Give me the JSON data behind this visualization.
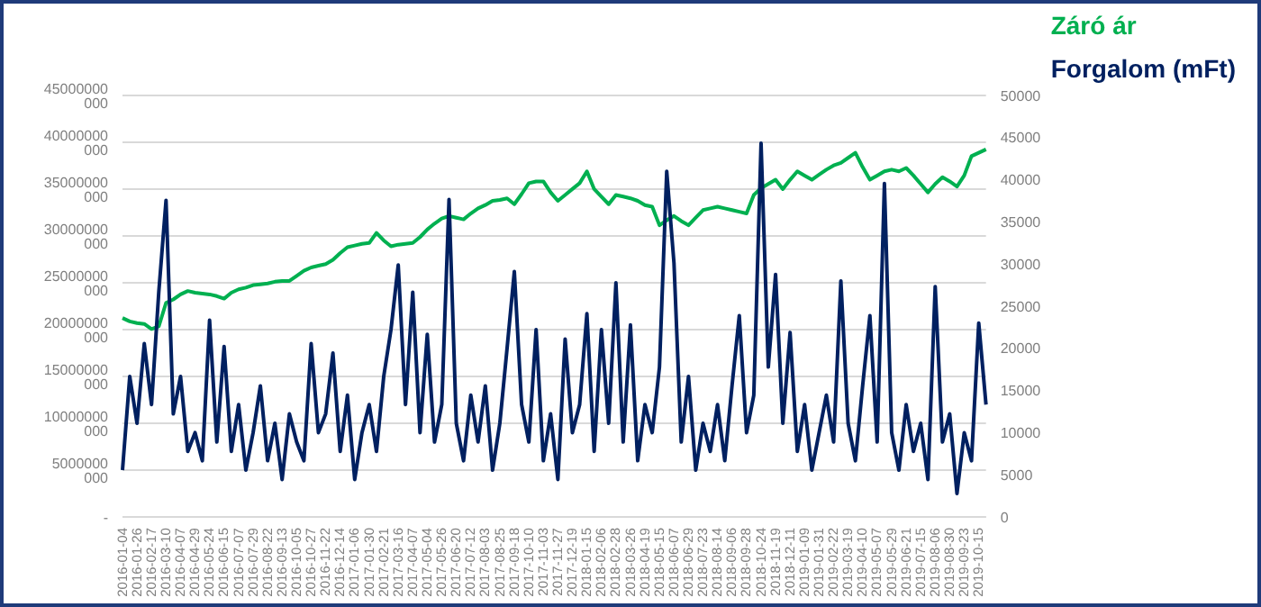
{
  "chart_data": {
    "type": "line",
    "categories": [
      "2016-01-04",
      null,
      "2016-01-26",
      null,
      "2016-02-17",
      null,
      "2016-03-10",
      null,
      "2016-04-07",
      null,
      "2016-04-29",
      null,
      "2016-05-24",
      null,
      "2016-06-15",
      null,
      "2016-07-07",
      null,
      "2016-07-29",
      null,
      "2016-08-22",
      null,
      "2016-09-13",
      null,
      "2016-10-05",
      null,
      "2016-10-27",
      null,
      "2016-11-22",
      null,
      "2016-12-14",
      null,
      "2017-01-06",
      null,
      "2017-01-30",
      null,
      "2017-02-21",
      null,
      "2017-03-16",
      null,
      "2017-04-07",
      null,
      "2017-05-04",
      null,
      "2017-05-26",
      null,
      "2017-06-20",
      null,
      "2017-07-12",
      null,
      "2017-08-03",
      null,
      "2017-08-25",
      null,
      "2017-09-18",
      null,
      "2017-10-10",
      null,
      "2017-11-03",
      null,
      "2017-11-27",
      null,
      "2017-12-19",
      null,
      "2018-01-15",
      null,
      "2018-02-06",
      null,
      "2018-02-28",
      null,
      "2018-03-26",
      null,
      "2018-04-19",
      null,
      "2018-05-15",
      null,
      "2018-06-07",
      null,
      "2018-06-29",
      null,
      "2018-07-23",
      null,
      "2018-08-14",
      null,
      "2018-09-06",
      null,
      "2018-09-28",
      null,
      "2018-10-24",
      null,
      "2018-11-19",
      null,
      "2018-12-11",
      null,
      "2019-01-09",
      null,
      "2019-01-31",
      null,
      "2019-02-22",
      null,
      "2019-03-19",
      null,
      "2019-04-10",
      null,
      "2019-05-07",
      null,
      "2019-05-29",
      null,
      "2019-06-21",
      null,
      "2019-07-15",
      null,
      "2019-08-06",
      null,
      "2019-08-30",
      null,
      "2019-09-23",
      null,
      "2019-10-15",
      null
    ],
    "series": [
      {
        "name": "Záró ár",
        "color": "#00b050",
        "axis": "y2",
        "values": [
          23600,
          23200,
          23000,
          22900,
          22300,
          22600,
          25400,
          25800,
          26400,
          26800,
          26600,
          26500,
          26400,
          26200,
          25900,
          26600,
          27000,
          27200,
          27500,
          27600,
          27700,
          27900,
          28000,
          28000,
          28600,
          29200,
          29600,
          29800,
          30000,
          30500,
          31300,
          32000,
          32200,
          32400,
          32500,
          33700,
          32800,
          32100,
          32300,
          32400,
          32500,
          33200,
          34100,
          34800,
          35400,
          35700,
          35500,
          35300,
          36000,
          36600,
          37000,
          37500,
          37600,
          37800,
          37100,
          38300,
          39600,
          39800,
          39800,
          38500,
          37500,
          38200,
          38900,
          39600,
          41000,
          38900,
          38000,
          37100,
          38200,
          38000,
          37800,
          37500,
          37000,
          36800,
          34600,
          35200,
          35700,
          35100,
          34600,
          35500,
          36400,
          36600,
          36800,
          36600,
          36400,
          36200,
          36000,
          38200,
          39000,
          39500,
          40000,
          38900,
          40000,
          41000,
          40500,
          40000,
          40600,
          41200,
          41700,
          42000,
          42600,
          43200,
          41500,
          40000,
          40500,
          41000,
          41200,
          41000,
          41400,
          40500,
          39500,
          38500,
          39500,
          40300,
          39800,
          39200,
          40500,
          42800,
          43200,
          43600
        ]
      },
      {
        "name": "Forgalom (mFt)",
        "color": "#002060",
        "values": [
          5000000000,
          15000000000,
          10000000000,
          18500000000,
          12000000000,
          24000000000,
          33800000000,
          11000000000,
          15000000000,
          7000000000,
          9000000000,
          6000000000,
          21000000000,
          8000000000,
          18200000000,
          7000000000,
          12000000000,
          5000000000,
          9000000000,
          14000000000,
          6000000000,
          10000000000,
          4000000000,
          11000000000,
          8000000000,
          6000000000,
          18500000000,
          9000000000,
          11000000000,
          17500000000,
          7000000000,
          13000000000,
          4000000000,
          9000000000,
          12000000000,
          7000000000,
          15000000000,
          20000000000,
          26900000000,
          12000000000,
          24000000000,
          9000000000,
          19500000000,
          8000000000,
          12000000000,
          33900000000,
          10000000000,
          6000000000,
          13000000000,
          8000000000,
          14000000000,
          5000000000,
          10000000000,
          18000000000,
          26200000000,
          12000000000,
          8000000000,
          20000000000,
          6000000000,
          11000000000,
          4000000000,
          19000000000,
          9000000000,
          12000000000,
          21700000000,
          7000000000,
          20000000000,
          10000000000,
          25000000000,
          8000000000,
          20500000000,
          6000000000,
          12000000000,
          9000000000,
          16000000000,
          36900000000,
          27100000000,
          8000000000,
          15000000000,
          5000000000,
          10000000000,
          7000000000,
          12000000000,
          6000000000,
          14000000000,
          21500000000,
          9000000000,
          13000000000,
          39900000000,
          16000000000,
          25900000000,
          10000000000,
          19700000000,
          7000000000,
          12000000000,
          5000000000,
          9000000000,
          13000000000,
          8000000000,
          25200000000,
          10000000000,
          6000000000,
          14000000000,
          21500000000,
          8000000000,
          35600000000,
          9000000000,
          5000000000,
          12000000000,
          7000000000,
          10000000000,
          4000000000,
          24600000000,
          8000000000,
          11000000000,
          2500000000,
          9000000000,
          6000000000,
          20700000000,
          12000000000
        ]
      }
    ],
    "ylim": [
      0,
      45000000000
    ],
    "yticks": [
      {
        "value": 0,
        "label": "-"
      },
      {
        "value": 5000000000,
        "label": "5000000 000"
      },
      {
        "value": 10000000000,
        "label": "10000000 000"
      },
      {
        "value": 15000000000,
        "label": "15000000 000"
      },
      {
        "value": 20000000000,
        "label": "20000000 000"
      },
      {
        "value": 25000000000,
        "label": "25000000 000"
      },
      {
        "value": 30000000000,
        "label": "30000000 000"
      },
      {
        "value": 35000000000,
        "label": "35000000 000"
      },
      {
        "value": 40000000000,
        "label": "40000000 000"
      },
      {
        "value": 45000000000,
        "label": "45000000 000"
      }
    ],
    "y2lim": [
      0,
      50000
    ],
    "y2ticks": [
      0,
      5000,
      10000,
      15000,
      20000,
      25000,
      30000,
      35000,
      40000,
      45000,
      50000
    ],
    "grid": "y",
    "legend": "top right",
    "marker": "none",
    "line_style": "solid"
  }
}
